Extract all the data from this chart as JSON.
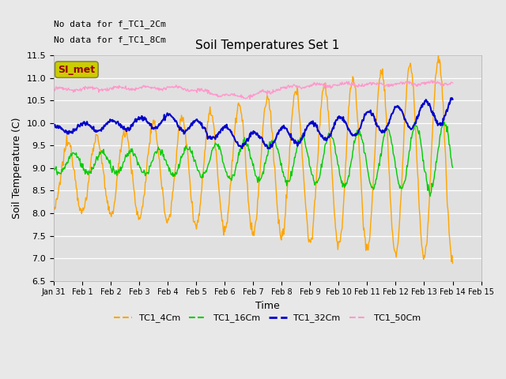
{
  "title": "Soil Temperatures Set 1",
  "ylabel": "Soil Temperature (C)",
  "xlabel": "Time",
  "ylim": [
    6.5,
    11.5
  ],
  "fig_bg": "#e8e8e8",
  "plot_bg": "#e0e0e0",
  "annotations": [
    "No data for f_TC1_2Cm",
    "No data for f_TC1_8Cm"
  ],
  "legend_label": "SI_met",
  "legend_bg": "#cccc00",
  "legend_border": "#888844",
  "legend_text_color": "#990000",
  "colors": {
    "TC1_4Cm": "#FFA500",
    "TC1_16Cm": "#00CC00",
    "TC1_32Cm": "#0000CC",
    "TC1_50Cm": "#FF99CC"
  },
  "x_tick_labels": [
    "Jan 31",
    "Feb 1",
    "Feb 2",
    "Feb 3",
    "Feb 4",
    "Feb 5",
    "Feb 6",
    "Feb 7",
    "Feb 8",
    "Feb 9",
    "Feb 10",
    "Feb 11",
    "Feb 12",
    "Feb 13",
    "Feb 14",
    "Feb 15"
  ],
  "yticks": [
    6.5,
    7.0,
    7.5,
    8.0,
    8.5,
    9.0,
    9.5,
    10.0,
    10.5,
    11.0,
    11.5
  ],
  "n_points": 672,
  "days": 14
}
